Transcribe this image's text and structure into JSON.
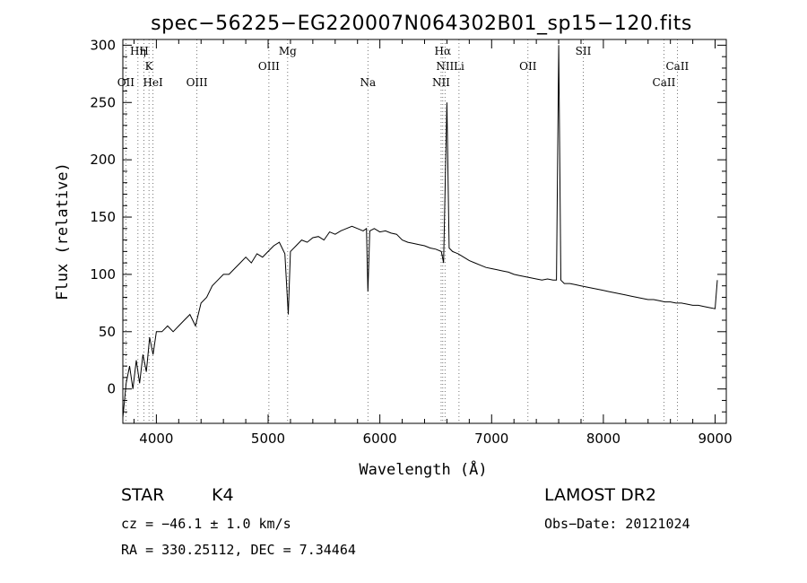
{
  "chart_data": {
    "type": "line",
    "title": "spec−56225−EG220007N064302B01_sp15−120.fits",
    "xlabel": "Wavelength (Å)",
    "ylabel": "Flux (relative)",
    "xlim": [
      3700,
      9100
    ],
    "ylim": [
      -30,
      305
    ],
    "xticks": [
      4000,
      5000,
      6000,
      7000,
      8000,
      9000
    ],
    "yticks": [
      0,
      50,
      100,
      150,
      200,
      250,
      300
    ],
    "grid": false,
    "series": [
      {
        "x": [
          3700,
          3730,
          3760,
          3790,
          3820,
          3850,
          3880,
          3910,
          3940,
          3970,
          4000,
          4050,
          4100,
          4150,
          4200,
          4250,
          4300,
          4350,
          4400,
          4450,
          4500,
          4550,
          4600,
          4650,
          4700,
          4750,
          4800,
          4850,
          4900,
          4950,
          5000,
          5050,
          5100,
          5150,
          5180,
          5200,
          5250,
          5300,
          5350,
          5400,
          5450,
          5500,
          5550,
          5600,
          5650,
          5700,
          5750,
          5800,
          5850,
          5880,
          5893,
          5910,
          5950,
          6000,
          6050,
          6100,
          6150,
          6200,
          6250,
          6300,
          6350,
          6400,
          6450,
          6500,
          6550,
          6570,
          6600,
          6620,
          6650,
          6700,
          6750,
          6800,
          6850,
          6900,
          6950,
          7000,
          7050,
          7100,
          7150,
          7200,
          7250,
          7300,
          7350,
          7400,
          7450,
          7500,
          7550,
          7580,
          7600,
          7620,
          7650,
          7700,
          7750,
          7800,
          7850,
          7900,
          7950,
          8000,
          8050,
          8100,
          8150,
          8200,
          8250,
          8300,
          8350,
          8400,
          8450,
          8500,
          8550,
          8600,
          8650,
          8700,
          8750,
          8800,
          8850,
          8900,
          8950,
          9000,
          9020
        ],
        "y": [
          -25,
          5,
          20,
          0,
          25,
          5,
          30,
          15,
          45,
          30,
          50,
          50,
          55,
          50,
          55,
          60,
          65,
          55,
          75,
          80,
          90,
          95,
          100,
          100,
          105,
          110,
          115,
          110,
          118,
          115,
          120,
          125,
          128,
          118,
          65,
          120,
          125,
          130,
          128,
          132,
          133,
          130,
          137,
          135,
          138,
          140,
          142,
          140,
          138,
          140,
          85,
          138,
          140,
          137,
          138,
          136,
          135,
          130,
          128,
          127,
          126,
          125,
          123,
          122,
          120,
          110,
          250,
          123,
          120,
          118,
          115,
          112,
          110,
          108,
          106,
          105,
          104,
          103,
          102,
          100,
          99,
          98,
          97,
          96,
          95,
          96,
          95,
          95,
          300,
          95,
          92,
          92,
          91,
          90,
          89,
          88,
          87,
          86,
          85,
          84,
          83,
          82,
          81,
          80,
          79,
          78,
          78,
          77,
          76,
          76,
          75,
          75,
          74,
          73,
          73,
          72,
          71,
          70,
          95
        ]
      }
    ],
    "spectral_lines": [
      {
        "label": "Hη",
        "x": 3835,
        "row": 1
      },
      {
        "label": "H",
        "x": 3889,
        "row": 1
      },
      {
        "label": "K",
        "x": 3934,
        "row": 2
      },
      {
        "label": "OII",
        "x": 3727,
        "row": 3
      },
      {
        "label": "HeI",
        "x": 3970,
        "row": 3
      },
      {
        "label": "OIII",
        "x": 4363,
        "row": 3
      },
      {
        "label": "Mg",
        "x": 5175,
        "row": 1
      },
      {
        "label": "OIII",
        "x": 5007,
        "row": 2
      },
      {
        "label": "Na",
        "x": 5893,
        "row": 3
      },
      {
        "label": "Hα",
        "x": 6563,
        "row": 1
      },
      {
        "label": "NII",
        "x": 6583,
        "row": 2
      },
      {
        "label": "Li",
        "x": 6708,
        "row": 2
      },
      {
        "label": "NII",
        "x": 6548,
        "row": 3
      },
      {
        "label": "OII",
        "x": 7325,
        "row": 2
      },
      {
        "label": "SII",
        "x": 7820,
        "row": 1
      },
      {
        "label": "CaII",
        "x": 8662,
        "row": 2
      },
      {
        "label": "CaII",
        "x": 8542,
        "row": 3
      }
    ]
  },
  "info": {
    "object_class": "STAR",
    "subclass": "K4",
    "survey": "LAMOST DR2",
    "redshift_text": "cz = −46.1 ± 1.0 km/s",
    "obs_date_text": "Obs−Date: 20121024",
    "coords_text": "RA = 330.25112, DEC =   7.34464"
  }
}
